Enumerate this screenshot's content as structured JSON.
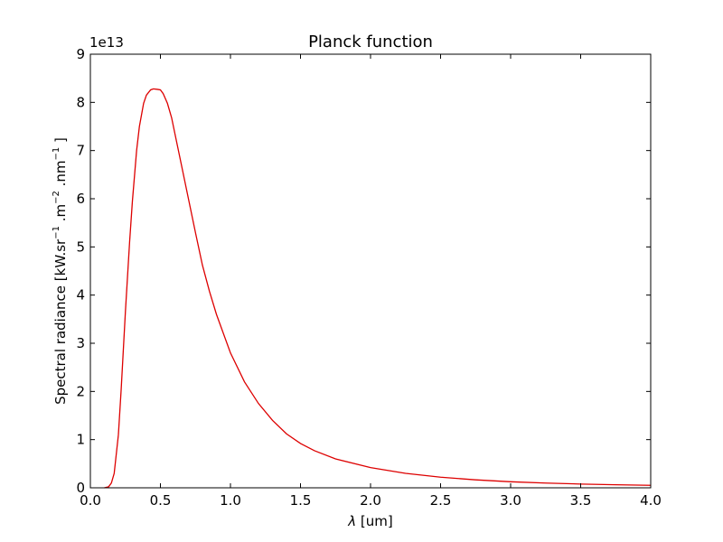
{
  "chart_data": {
    "type": "line",
    "title": "Planck function",
    "xlabel": {
      "symbol": "λ",
      "rest": " [um]"
    },
    "ylabel": {
      "prefix": "Spectral radiance [kW.sr",
      "sup1": "−1",
      "mid1": " .m",
      "sup2": "−2",
      "mid2": " .nm",
      "sup3": "−1",
      "suffix": " ]"
    },
    "y_offset_text": "1e13",
    "xlim": [
      0.0,
      4.0
    ],
    "ylim": [
      0,
      9
    ],
    "y_scale_multiplier": 10000000000000.0,
    "xticks": [
      {
        "value": 0.0,
        "label": "0.0"
      },
      {
        "value": 0.5,
        "label": "0.5"
      },
      {
        "value": 1.0,
        "label": "1.0"
      },
      {
        "value": 1.5,
        "label": "1.5"
      },
      {
        "value": 2.0,
        "label": "2.0"
      },
      {
        "value": 2.5,
        "label": "2.5"
      },
      {
        "value": 3.0,
        "label": "3.0"
      },
      {
        "value": 3.5,
        "label": "3.5"
      },
      {
        "value": 4.0,
        "label": "4.0"
      }
    ],
    "yticks": [
      {
        "value": 0,
        "label": "0"
      },
      {
        "value": 1,
        "label": "1"
      },
      {
        "value": 2,
        "label": "2"
      },
      {
        "value": 3,
        "label": "3"
      },
      {
        "value": 4,
        "label": "4"
      },
      {
        "value": 5,
        "label": "5"
      },
      {
        "value": 6,
        "label": "6"
      },
      {
        "value": 7,
        "label": "7"
      },
      {
        "value": 8,
        "label": "8"
      },
      {
        "value": 9,
        "label": "9"
      }
    ],
    "grid": false,
    "series": [
      {
        "color": "#dd0000",
        "x": [
          0.1,
          0.13,
          0.15,
          0.17,
          0.2,
          0.22,
          0.25,
          0.28,
          0.3,
          0.33,
          0.35,
          0.38,
          0.4,
          0.43,
          0.45,
          0.48,
          0.5,
          0.52,
          0.55,
          0.58,
          0.6,
          0.65,
          0.7,
          0.75,
          0.8,
          0.85,
          0.9,
          1.0,
          1.1,
          1.2,
          1.3,
          1.4,
          1.5,
          1.6,
          1.75,
          2.0,
          2.25,
          2.5,
          2.75,
          3.0,
          3.25,
          3.5,
          3.75,
          4.0
        ],
        "y": [
          0.0,
          0.02,
          0.1,
          0.3,
          1.1,
          2.05,
          3.65,
          5.1,
          5.95,
          7.0,
          7.5,
          7.98,
          8.15,
          8.26,
          8.28,
          8.27,
          8.26,
          8.18,
          7.98,
          7.68,
          7.4,
          6.7,
          6.0,
          5.3,
          4.62,
          4.08,
          3.6,
          2.8,
          2.2,
          1.75,
          1.4,
          1.12,
          0.92,
          0.77,
          0.6,
          0.42,
          0.3,
          0.22,
          0.165,
          0.125,
          0.098,
          0.078,
          0.063,
          0.052
        ]
      }
    ]
  }
}
